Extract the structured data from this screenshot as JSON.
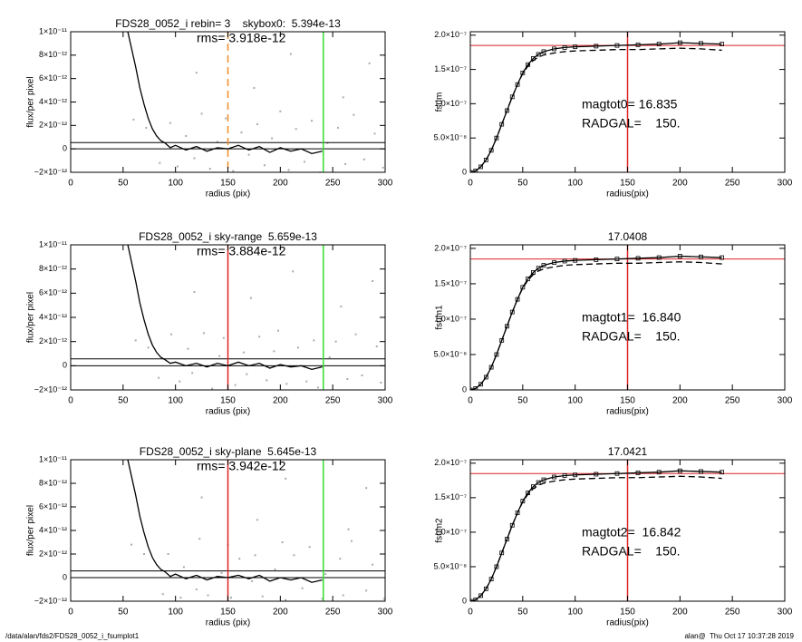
{
  "chart_data": [
    {
      "type": "line",
      "title": "FDS28_0052_i rebin= 3    skybox0:  5.394e-13",
      "annotations": [
        "rms= 3.918e-12"
      ],
      "x_label": "radius (pix)",
      "y_label": "flux/per pixel",
      "xlim": [
        0,
        300
      ],
      "xticks": [
        0,
        50,
        100,
        150,
        200,
        250,
        300
      ],
      "ylim": [
        -2e-12,
        1e-11
      ],
      "yticks": [
        {
          "value": -2e-12,
          "label": "−2×10⁻¹²"
        },
        0,
        {
          "value": 2e-12,
          "label": "2×10⁻¹²"
        },
        {
          "value": 4e-12,
          "label": "4×10⁻¹²"
        },
        {
          "value": 6e-12,
          "label": "6×10⁻¹²"
        },
        {
          "value": 8e-12,
          "label": "8×10⁻¹²"
        },
        {
          "value": 1e-11,
          "label": "1×10⁻¹¹"
        }
      ],
      "points": {
        "color": "#aaaaaa",
        "x": [
          60,
          72,
          85,
          95,
          102,
          110,
          118,
          125,
          133,
          140,
          148,
          155,
          163,
          170,
          178,
          185,
          192,
          200,
          208,
          215,
          223,
          230,
          238,
          245,
          255,
          262,
          270,
          280,
          290,
          298,
          120,
          175,
          210,
          260,
          285
        ],
        "values": [
          2.5e-12,
          1.8e-12,
          -1.2e-12,
          2.2e-12,
          -1.5e-12,
          1.1e-12,
          -8e-13,
          3e-12,
          -1.7e-12,
          6e-13,
          2.6e-12,
          -1.9e-12,
          1.4e-12,
          -5e-13,
          2.1e-12,
          -1.4e-12,
          9e-13,
          3.2e-12,
          -1.8e-12,
          1.7e-12,
          -1.1e-12,
          2.4e-12,
          -2e-12,
          5e-13,
          1.8e-12,
          -1.3e-12,
          2.9e-12,
          -9e-13,
          1.3e-12,
          -1.6e-12,
          6.5e-12,
          5.2e-12,
          8.1e-12,
          4.4e-12,
          7.3e-12
        ]
      },
      "x": [
        52,
        55,
        58,
        62,
        66,
        70,
        74,
        78,
        82,
        86,
        90,
        95,
        100,
        110,
        120,
        130,
        140,
        150,
        160,
        170,
        180,
        190,
        200,
        210,
        220,
        230,
        240
      ],
      "series": [
        {
          "color": "#000000",
          "values": [
            1.1e-11,
            9.8e-12,
            8.6e-12,
            7e-12,
            5.2e-12,
            3.8e-12,
            2.6e-12,
            1.7e-12,
            1.1e-12,
            7e-13,
            5e-13,
            1e-13,
            3e-13,
            -1e-13,
            2e-13,
            -2e-13,
            1e-13,
            0.0,
            3e-13,
            -1e-13,
            2e-13,
            -3e-13,
            1e-13,
            -2e-13,
            0.0,
            -4e-13,
            -2e-13
          ]
        }
      ],
      "hlines": [
        {
          "value": 5.394e-13,
          "color": "#000000"
        },
        {
          "value": 0,
          "color": "#000000"
        }
      ],
      "vlines": [
        {
          "value": 150,
          "color": "#f08a24",
          "dashed": true
        },
        {
          "value": 241,
          "color": "#33dd33"
        }
      ]
    },
    {
      "type": "line",
      "annotations": [
        "magtot0= 16.835",
        "RADGAL=    150."
      ],
      "x_label": "radius(pix)",
      "y_label": "fsum",
      "xlim": [
        0,
        300
      ],
      "xticks": [
        0,
        50,
        100,
        150,
        200,
        250,
        300
      ],
      "ylim": [
        0,
        2.05e-07
      ],
      "yticks": [
        0,
        {
          "value": 5e-08,
          "label": "5.0×10⁻⁸"
        },
        {
          "value": 1e-07,
          "label": "1.0×10⁻⁷"
        },
        {
          "value": 1.5e-07,
          "label": "1.5×10⁻⁷"
        },
        {
          "value": 2e-07,
          "label": "2.0×10⁻⁷"
        }
      ],
      "x": [
        0,
        5,
        10,
        15,
        20,
        25,
        30,
        35,
        40,
        45,
        50,
        55,
        60,
        65,
        70,
        80,
        90,
        100,
        120,
        140,
        160,
        180,
        200,
        220,
        240
      ],
      "series": [
        {
          "color": "#000000",
          "markers": true,
          "values": [
            0,
            2e-09,
            8e-09,
            1.8e-08,
            3.2e-08,
            5e-08,
            7e-08,
            9e-08,
            1.1e-07,
            1.28e-07,
            1.45e-07,
            1.57e-07,
            1.66e-07,
            1.72e-07,
            1.76e-07,
            1.8e-07,
            1.82e-07,
            1.83e-07,
            1.84e-07,
            1.85e-07,
            1.86e-07,
            1.87e-07,
            1.89e-07,
            1.88e-07,
            1.87e-07
          ]
        },
        {
          "color": "#000000",
          "dashed": true,
          "values": [
            0,
            2e-09,
            8e-09,
            1.8e-08,
            3.2e-08,
            5e-08,
            7e-08,
            9e-08,
            1.1e-07,
            1.28e-07,
            1.44e-07,
            1.55e-07,
            1.63e-07,
            1.68e-07,
            1.71e-07,
            1.74e-07,
            1.76e-07,
            1.77e-07,
            1.78e-07,
            1.79e-07,
            1.79e-07,
            1.8e-07,
            1.81e-07,
            1.8e-07,
            1.78e-07
          ]
        }
      ],
      "hlines": [
        {
          "value": 1.85e-07,
          "color": "#dd2222"
        }
      ],
      "vlines": [
        {
          "value": 150,
          "color": "#dd2222"
        }
      ]
    },
    {
      "type": "line",
      "title": "FDS28_0052_i sky-range  5.659e-13",
      "annotations": [
        "rms= 3.884e-12"
      ],
      "x_label": "radius (pix)",
      "y_label": "flux/per pixel",
      "xlim": [
        0,
        300
      ],
      "xticks": [
        0,
        50,
        100,
        150,
        200,
        250,
        300
      ],
      "ylim": [
        -2e-12,
        1e-11
      ],
      "yticks": [
        {
          "value": -2e-12,
          "label": "−2×10⁻¹²"
        },
        0,
        {
          "value": 2e-12,
          "label": "2×10⁻¹²"
        },
        {
          "value": 4e-12,
          "label": "4×10⁻¹²"
        },
        {
          "value": 6e-12,
          "label": "6×10⁻¹²"
        },
        {
          "value": 8e-12,
          "label": "8×10⁻¹²"
        },
        {
          "value": 1e-11,
          "label": "1×10⁻¹¹"
        }
      ],
      "points": {
        "color": "#aaaaaa",
        "x": [
          62,
          74,
          84,
          96,
          104,
          112,
          116,
          127,
          135,
          142,
          146,
          157,
          165,
          168,
          180,
          187,
          194,
          198,
          206,
          217,
          225,
          232,
          236,
          247,
          253,
          264,
          272,
          278,
          292,
          296,
          118,
          172,
          212,
          258,
          288
        ],
        "values": [
          2.1e-12,
          1.5e-12,
          -1e-12,
          2.6e-12,
          -1.3e-12,
          1.4e-12,
          -6e-13,
          2.7e-12,
          -1.9e-12,
          8e-13,
          2.3e-12,
          -1.6e-12,
          1.1e-12,
          -7e-13,
          2.4e-12,
          -1.2e-12,
          1.2e-12,
          2.9e-12,
          -1.5e-12,
          1.5e-12,
          -1.3e-12,
          2.1e-12,
          -1.8e-12,
          7e-13,
          2e-12,
          -1.1e-12,
          2.6e-12,
          -8e-13,
          1.6e-12,
          -1.4e-12,
          6.1e-12,
          5.6e-12,
          7.8e-12,
          4.9e-12,
          7e-12
        ]
      },
      "x": [
        52,
        55,
        58,
        62,
        66,
        70,
        74,
        78,
        82,
        86,
        90,
        95,
        100,
        110,
        120,
        130,
        140,
        150,
        160,
        170,
        180,
        190,
        200,
        210,
        220,
        230,
        240
      ],
      "series": [
        {
          "color": "#000000",
          "values": [
            1.1e-11,
            9.8e-12,
            8.6e-12,
            7e-12,
            5.2e-12,
            3.8e-12,
            2.6e-12,
            1.7e-12,
            1.1e-12,
            7e-13,
            5e-13,
            2e-13,
            3e-13,
            0.0,
            2e-13,
            -1e-13,
            2e-13,
            0.0,
            3e-13,
            0.0,
            2e-13,
            -2e-13,
            1e-13,
            -1e-13,
            0.0,
            -3e-13,
            -1e-13
          ]
        }
      ],
      "hlines": [
        {
          "value": 5.659e-13,
          "color": "#000000"
        },
        {
          "value": 0,
          "color": "#000000"
        }
      ],
      "vlines": [
        {
          "value": 150,
          "color": "#dd2222"
        },
        {
          "value": 241,
          "color": "#33dd33"
        }
      ]
    },
    {
      "type": "line",
      "title": "17.0408",
      "annotations": [
        "magtot1=  16.840",
        "RADGAL=    150."
      ],
      "x_label": "radius(pix)",
      "y_label": "fsum1",
      "xlim": [
        0,
        300
      ],
      "xticks": [
        0,
        50,
        100,
        150,
        200,
        250,
        300
      ],
      "ylim": [
        0,
        2.05e-07
      ],
      "yticks": [
        0,
        {
          "value": 5e-08,
          "label": "5.0×10⁻⁸"
        },
        {
          "value": 1e-07,
          "label": "1.0×10⁻⁷"
        },
        {
          "value": 1.5e-07,
          "label": "1.5×10⁻⁷"
        },
        {
          "value": 2e-07,
          "label": "2.0×10⁻⁷"
        }
      ],
      "x": [
        0,
        5,
        10,
        15,
        20,
        25,
        30,
        35,
        40,
        45,
        50,
        55,
        60,
        65,
        70,
        80,
        90,
        100,
        120,
        140,
        160,
        180,
        200,
        220,
        240
      ],
      "series": [
        {
          "color": "#000000",
          "markers": true,
          "values": [
            0,
            2e-09,
            8e-09,
            1.8e-08,
            3.2e-08,
            5e-08,
            7e-08,
            9e-08,
            1.1e-07,
            1.28e-07,
            1.45e-07,
            1.57e-07,
            1.66e-07,
            1.72e-07,
            1.76e-07,
            1.8e-07,
            1.82e-07,
            1.83e-07,
            1.84e-07,
            1.85e-07,
            1.86e-07,
            1.87e-07,
            1.89e-07,
            1.88e-07,
            1.87e-07
          ]
        },
        {
          "color": "#000000",
          "dashed": true,
          "values": [
            0,
            2e-09,
            8e-09,
            1.8e-08,
            3.2e-08,
            5e-08,
            7e-08,
            9e-08,
            1.1e-07,
            1.28e-07,
            1.44e-07,
            1.55e-07,
            1.63e-07,
            1.68e-07,
            1.71e-07,
            1.74e-07,
            1.76e-07,
            1.77e-07,
            1.78e-07,
            1.79e-07,
            1.79e-07,
            1.8e-07,
            1.81e-07,
            1.8e-07,
            1.78e-07
          ]
        }
      ],
      "hlines": [
        {
          "value": 1.85e-07,
          "color": "#dd2222"
        }
      ],
      "vlines": [
        {
          "value": 150,
          "color": "#dd2222"
        }
      ]
    },
    {
      "type": "line",
      "title": "FDS28_0052_i sky-plane  5.645e-13",
      "annotations": [
        "rms= 3.942e-12"
      ],
      "x_label": "radius (pix)",
      "y_label": "flux/per pixel",
      "xlim": [
        0,
        300
      ],
      "xticks": [
        0,
        50,
        100,
        150,
        200,
        250,
        300
      ],
      "ylim": [
        -2e-12,
        1e-11
      ],
      "yticks": [
        {
          "value": -2e-12,
          "label": "−2×10⁻¹²"
        },
        0,
        {
          "value": 2e-12,
          "label": "2×10⁻¹²"
        },
        {
          "value": 4e-12,
          "label": "4×10⁻¹²"
        },
        {
          "value": 6e-12,
          "label": "6×10⁻¹²"
        },
        {
          "value": 8e-12,
          "label": "8×10⁻¹²"
        },
        {
          "value": 1e-11,
          "label": "1×10⁻¹¹"
        }
      ],
      "points": {
        "color": "#aaaaaa",
        "x": [
          58,
          70,
          88,
          93,
          105,
          108,
          120,
          123,
          131,
          144,
          150,
          153,
          161,
          173,
          176,
          183,
          195,
          202,
          205,
          213,
          221,
          228,
          240,
          243,
          257,
          260,
          268,
          282,
          288,
          299,
          125,
          178,
          205,
          265,
          282
        ],
        "values": [
          2.8e-12,
          2e-12,
          -1.4e-12,
          2e-12,
          -1.7e-12,
          9e-13,
          -1e-12,
          3.3e-12,
          -1.5e-12,
          4e-13,
          2.8e-12,
          -1.7e-12,
          1.6e-12,
          -3e-13,
          1.9e-12,
          -1.6e-12,
          7e-13,
          3e-12,
          -1.9e-12,
          1.9e-12,
          -9e-13,
          2.6e-12,
          -1.8e-12,
          3e-13,
          1.6e-12,
          -1.5e-12,
          3.1e-12,
          -1.1e-12,
          1.1e-12,
          -1.8e-12,
          6.8e-12,
          4.9e-12,
          8.4e-12,
          4.1e-12,
          7.6e-12
        ]
      },
      "x": [
        52,
        55,
        58,
        62,
        66,
        70,
        74,
        78,
        82,
        86,
        90,
        95,
        100,
        110,
        120,
        130,
        140,
        150,
        160,
        170,
        180,
        190,
        200,
        210,
        220,
        230,
        240
      ],
      "series": [
        {
          "color": "#000000",
          "values": [
            1.1e-11,
            9.8e-12,
            8.6e-12,
            7e-12,
            5.2e-12,
            3.8e-12,
            2.6e-12,
            1.7e-12,
            1.1e-12,
            7e-13,
            5e-13,
            1e-13,
            3e-13,
            -1e-13,
            2e-13,
            -2e-13,
            1e-13,
            0.0,
            2e-13,
            -1e-13,
            2e-13,
            -3e-13,
            0.0,
            -2e-13,
            0.0,
            -4e-13,
            -2e-13
          ]
        }
      ],
      "hlines": [
        {
          "value": 5.645e-13,
          "color": "#000000"
        },
        {
          "value": 0,
          "color": "#000000"
        }
      ],
      "vlines": [
        {
          "value": 150,
          "color": "#dd2222"
        },
        {
          "value": 241,
          "color": "#33dd33"
        }
      ]
    },
    {
      "type": "line",
      "title": "17.0421",
      "annotations": [
        "magtot2=  16.842",
        "RADGAL=    150."
      ],
      "x_label": "radius(pix)",
      "y_label": "fsum2",
      "xlim": [
        0,
        300
      ],
      "xticks": [
        0,
        50,
        100,
        150,
        200,
        250,
        300
      ],
      "ylim": [
        0,
        2.05e-07
      ],
      "yticks": [
        0,
        {
          "value": 5e-08,
          "label": "5.0×10⁻⁸"
        },
        {
          "value": 1e-07,
          "label": "1.0×10⁻⁷"
        },
        {
          "value": 1.5e-07,
          "label": "1.5×10⁻⁷"
        },
        {
          "value": 2e-07,
          "label": "2.0×10⁻⁷"
        }
      ],
      "x": [
        0,
        5,
        10,
        15,
        20,
        25,
        30,
        35,
        40,
        45,
        50,
        55,
        60,
        65,
        70,
        80,
        90,
        100,
        120,
        140,
        160,
        180,
        200,
        220,
        240
      ],
      "series": [
        {
          "color": "#000000",
          "markers": true,
          "values": [
            0,
            2e-09,
            8e-09,
            1.8e-08,
            3.2e-08,
            5e-08,
            7e-08,
            9e-08,
            1.1e-07,
            1.28e-07,
            1.45e-07,
            1.57e-07,
            1.66e-07,
            1.72e-07,
            1.76e-07,
            1.8e-07,
            1.82e-07,
            1.83e-07,
            1.84e-07,
            1.85e-07,
            1.86e-07,
            1.87e-07,
            1.89e-07,
            1.88e-07,
            1.87e-07
          ]
        },
        {
          "color": "#000000",
          "dashed": true,
          "values": [
            0,
            2e-09,
            8e-09,
            1.8e-08,
            3.2e-08,
            5e-08,
            7e-08,
            9e-08,
            1.1e-07,
            1.28e-07,
            1.44e-07,
            1.55e-07,
            1.63e-07,
            1.68e-07,
            1.71e-07,
            1.74e-07,
            1.76e-07,
            1.77e-07,
            1.78e-07,
            1.79e-07,
            1.79e-07,
            1.8e-07,
            1.81e-07,
            1.8e-07,
            1.78e-07
          ]
        }
      ],
      "hlines": [
        {
          "value": 1.85e-07,
          "color": "#dd2222"
        }
      ],
      "vlines": [
        {
          "value": 150,
          "color": "#dd2222"
        }
      ]
    }
  ],
  "footer": {
    "left": "/data/alan/fds2/FDS28_0052_i_fsumplot1",
    "right": "alan@  Thu Oct 17 10:37:28 2019"
  }
}
